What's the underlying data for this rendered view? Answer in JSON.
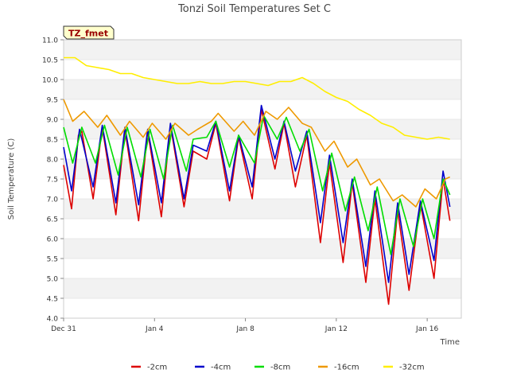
{
  "chart_data": {
    "type": "line",
    "title": "Tonzi Soil Temperatures Set C",
    "xlabel": "Time",
    "ylabel": "Soil Temperature (C)",
    "annotation": "TZ_fmet",
    "xlim_days": [
      0,
      17.5
    ],
    "ylim": [
      4.0,
      11.0
    ],
    "yticks": [
      "4.0",
      "4.5",
      "5.0",
      "5.5",
      "6.0",
      "6.5",
      "7.0",
      "7.5",
      "8.0",
      "8.5",
      "9.0",
      "9.5",
      "10.0",
      "10.5",
      "11.0"
    ],
    "xticks": [
      {
        "day": 0,
        "label": "Dec 31"
      },
      {
        "day": 4,
        "label": "Jan 4"
      },
      {
        "day": 8,
        "label": "Jan 8"
      },
      {
        "day": 12,
        "label": "Jan 12"
      },
      {
        "day": 16,
        "label": "Jan 16"
      }
    ],
    "grid": "horizontal bands",
    "legend_position": "bottom-center",
    "series": [
      {
        "name": "-2cm",
        "color": "#dd0000",
        "points": [
          [
            0.0,
            7.85
          ],
          [
            0.3,
            6.9
          ],
          [
            0.35,
            6.75
          ],
          [
            0.65,
            8.6
          ],
          [
            0.8,
            8.7
          ],
          [
            1.3,
            7.0
          ],
          [
            1.7,
            8.8
          ],
          [
            2.3,
            6.6
          ],
          [
            2.7,
            8.75
          ],
          [
            3.3,
            6.45
          ],
          [
            3.7,
            8.7
          ],
          [
            4.3,
            6.55
          ],
          [
            4.7,
            8.85
          ],
          [
            5.3,
            6.8
          ],
          [
            5.7,
            8.2
          ],
          [
            6.3,
            8.0
          ],
          [
            6.7,
            8.9
          ],
          [
            7.3,
            6.95
          ],
          [
            7.7,
            8.55
          ],
          [
            8.3,
            7.0
          ],
          [
            8.7,
            9.25
          ],
          [
            9.3,
            7.75
          ],
          [
            9.7,
            8.9
          ],
          [
            10.2,
            7.3
          ],
          [
            10.7,
            8.6
          ],
          [
            11.3,
            5.9
          ],
          [
            11.7,
            7.9
          ],
          [
            12.3,
            5.4
          ],
          [
            12.7,
            7.4
          ],
          [
            13.3,
            4.9
          ],
          [
            13.7,
            7.0
          ],
          [
            14.3,
            4.35
          ],
          [
            14.7,
            6.7
          ],
          [
            15.2,
            4.7
          ],
          [
            15.7,
            6.9
          ],
          [
            16.3,
            5.0
          ],
          [
            16.7,
            7.5
          ],
          [
            17.0,
            6.45
          ]
        ]
      },
      {
        "name": "-4cm",
        "color": "#0000cc",
        "points": [
          [
            0.0,
            8.3
          ],
          [
            0.35,
            7.2
          ],
          [
            0.7,
            8.75
          ],
          [
            1.3,
            7.3
          ],
          [
            1.7,
            8.85
          ],
          [
            2.3,
            6.9
          ],
          [
            2.7,
            8.8
          ],
          [
            3.3,
            6.85
          ],
          [
            3.7,
            8.75
          ],
          [
            4.3,
            6.9
          ],
          [
            4.7,
            8.9
          ],
          [
            5.3,
            7.0
          ],
          [
            5.7,
            8.35
          ],
          [
            6.3,
            8.2
          ],
          [
            6.7,
            8.95
          ],
          [
            7.3,
            7.2
          ],
          [
            7.7,
            8.6
          ],
          [
            8.3,
            7.3
          ],
          [
            8.7,
            9.35
          ],
          [
            9.3,
            8.0
          ],
          [
            9.7,
            8.95
          ],
          [
            10.2,
            7.7
          ],
          [
            10.7,
            8.7
          ],
          [
            11.3,
            6.4
          ],
          [
            11.7,
            8.1
          ],
          [
            12.3,
            5.9
          ],
          [
            12.7,
            7.5
          ],
          [
            13.3,
            5.3
          ],
          [
            13.7,
            7.2
          ],
          [
            14.3,
            4.9
          ],
          [
            14.7,
            6.9
          ],
          [
            15.2,
            5.1
          ],
          [
            15.7,
            6.95
          ],
          [
            16.3,
            5.45
          ],
          [
            16.7,
            7.7
          ],
          [
            17.0,
            6.8
          ]
        ]
      },
      {
        "name": "-8cm",
        "color": "#00dd00",
        "points": [
          [
            0.0,
            8.8
          ],
          [
            0.4,
            7.9
          ],
          [
            0.8,
            8.8
          ],
          [
            1.4,
            7.9
          ],
          [
            1.8,
            8.85
          ],
          [
            2.4,
            7.6
          ],
          [
            2.8,
            8.8
          ],
          [
            3.4,
            7.55
          ],
          [
            3.8,
            8.75
          ],
          [
            4.4,
            7.5
          ],
          [
            4.8,
            8.85
          ],
          [
            5.4,
            7.7
          ],
          [
            5.7,
            8.5
          ],
          [
            6.3,
            8.55
          ],
          [
            6.7,
            8.95
          ],
          [
            7.3,
            7.8
          ],
          [
            7.7,
            8.6
          ],
          [
            8.4,
            7.9
          ],
          [
            8.8,
            9.1
          ],
          [
            9.4,
            8.5
          ],
          [
            9.8,
            9.05
          ],
          [
            10.4,
            8.2
          ],
          [
            10.8,
            8.75
          ],
          [
            11.4,
            7.2
          ],
          [
            11.8,
            8.15
          ],
          [
            12.4,
            6.7
          ],
          [
            12.8,
            7.55
          ],
          [
            13.4,
            6.2
          ],
          [
            13.8,
            7.3
          ],
          [
            14.4,
            5.6
          ],
          [
            14.8,
            7.0
          ],
          [
            15.4,
            5.8
          ],
          [
            15.8,
            7.0
          ],
          [
            16.3,
            6.0
          ],
          [
            16.7,
            7.5
          ],
          [
            17.0,
            7.1
          ]
        ]
      },
      {
        "name": "-16cm",
        "color": "#ee9900",
        "points": [
          [
            0.0,
            9.5
          ],
          [
            0.4,
            8.95
          ],
          [
            0.9,
            9.2
          ],
          [
            1.5,
            8.8
          ],
          [
            1.9,
            9.1
          ],
          [
            2.5,
            8.6
          ],
          [
            2.9,
            8.95
          ],
          [
            3.5,
            8.55
          ],
          [
            3.9,
            8.9
          ],
          [
            4.5,
            8.5
          ],
          [
            4.9,
            8.9
          ],
          [
            5.5,
            8.6
          ],
          [
            5.9,
            8.75
          ],
          [
            6.5,
            8.95
          ],
          [
            6.8,
            9.15
          ],
          [
            7.5,
            8.7
          ],
          [
            7.9,
            8.95
          ],
          [
            8.4,
            8.6
          ],
          [
            8.9,
            9.2
          ],
          [
            9.4,
            9.0
          ],
          [
            9.9,
            9.3
          ],
          [
            10.5,
            8.9
          ],
          [
            10.9,
            8.8
          ],
          [
            11.5,
            8.2
          ],
          [
            11.9,
            8.45
          ],
          [
            12.5,
            7.8
          ],
          [
            12.9,
            8.0
          ],
          [
            13.5,
            7.35
          ],
          [
            13.9,
            7.5
          ],
          [
            14.5,
            6.95
          ],
          [
            14.9,
            7.1
          ],
          [
            15.5,
            6.8
          ],
          [
            15.9,
            7.25
          ],
          [
            16.4,
            7.0
          ],
          [
            16.8,
            7.5
          ],
          [
            17.0,
            7.55
          ]
        ]
      },
      {
        "name": "-32cm",
        "color": "#ffee00",
        "points": [
          [
            0.0,
            10.55
          ],
          [
            0.5,
            10.55
          ],
          [
            1.0,
            10.35
          ],
          [
            1.5,
            10.3
          ],
          [
            2.0,
            10.25
          ],
          [
            2.5,
            10.15
          ],
          [
            3.0,
            10.15
          ],
          [
            3.5,
            10.05
          ],
          [
            4.0,
            10.0
          ],
          [
            4.5,
            9.95
          ],
          [
            5.0,
            9.9
          ],
          [
            5.5,
            9.9
          ],
          [
            6.0,
            9.95
          ],
          [
            6.5,
            9.9
          ],
          [
            7.0,
            9.9
          ],
          [
            7.5,
            9.95
          ],
          [
            8.0,
            9.95
          ],
          [
            8.5,
            9.9
          ],
          [
            9.0,
            9.85
          ],
          [
            9.5,
            9.95
          ],
          [
            10.0,
            9.95
          ],
          [
            10.5,
            10.05
          ],
          [
            11.0,
            9.9
          ],
          [
            11.5,
            9.7
          ],
          [
            12.0,
            9.55
          ],
          [
            12.5,
            9.45
          ],
          [
            13.0,
            9.25
          ],
          [
            13.5,
            9.1
          ],
          [
            14.0,
            8.9
          ],
          [
            14.5,
            8.8
          ],
          [
            15.0,
            8.6
          ],
          [
            15.5,
            8.55
          ],
          [
            16.0,
            8.5
          ],
          [
            16.5,
            8.55
          ],
          [
            17.0,
            8.5
          ]
        ]
      }
    ]
  }
}
